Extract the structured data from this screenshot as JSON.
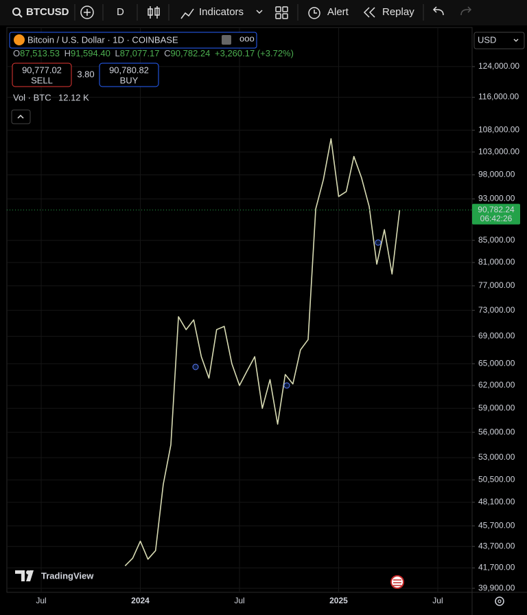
{
  "toolbar": {
    "symbol": "BTCUSD",
    "interval": "D",
    "indicators": "Indicators",
    "alert": "Alert",
    "replay": "Replay"
  },
  "legend": {
    "title": "Bitcoin / U.S. Dollar · 1D · COINBASE",
    "ohlc": [
      {
        "label": "O",
        "value": "87,513.53"
      },
      {
        "label": "H",
        "value": "91,594.40"
      },
      {
        "label": "L",
        "value": "87,077.17"
      },
      {
        "label": "C",
        "value": "90,782.24"
      }
    ],
    "change": "+3,260.17 (+3.72%)",
    "sell": {
      "price": "90,777.02",
      "label": "SELL"
    },
    "spread": "3.80",
    "buy": {
      "price": "90,780.82",
      "label": "BUY"
    },
    "volume": {
      "label": "Vol · BTC",
      "value": "12.12 K"
    }
  },
  "currency": "USD",
  "price_label": {
    "price": "90,782.24",
    "countdown": "06:42:26"
  },
  "watermark": "TradingView",
  "chart_data": {
    "type": "line",
    "color": "#d9dcb4",
    "log_scale": true,
    "grid": true,
    "categories": [
      null,
      null,
      null,
      null,
      "Jul",
      null,
      null,
      null,
      null,
      null,
      null,
      null,
      null,
      null,
      null,
      null,
      null,
      "2024",
      null,
      null,
      null,
      null,
      null,
      null,
      null,
      null,
      null,
      null,
      null,
      null,
      "Jul",
      null,
      null,
      null,
      null,
      null,
      null,
      null,
      null,
      null,
      null,
      null,
      null,
      "2025",
      null,
      null,
      null,
      null,
      null,
      null,
      null,
      null,
      null,
      null,
      null,
      null,
      "Jul",
      null,
      null,
      null,
      null
    ],
    "values": [
      null,
      null,
      null,
      null,
      null,
      null,
      null,
      null,
      null,
      null,
      null,
      null,
      null,
      null,
      null,
      41900,
      42600,
      44200,
      42500,
      43300,
      50000,
      54500,
      72000,
      70000,
      71500,
      66000,
      63000,
      70000,
      70500,
      65000,
      62000,
      64000,
      66000,
      59000,
      62800,
      57000,
      63500,
      62200,
      67000,
      68500,
      91000,
      97000,
      106000,
      93500,
      94500,
      102000,
      97400,
      91500,
      80700,
      87000,
      79000,
      90782.24,
      null,
      null,
      null,
      null,
      null,
      null,
      null,
      null,
      null
    ],
    "ylim": [
      39550,
      135000
    ],
    "yticks": [
      {
        "value": 124000,
        "label": "124,000.00"
      },
      {
        "value": 116000,
        "label": "116,000.00"
      },
      {
        "value": 108000,
        "label": "108,000.00"
      },
      {
        "value": 103000,
        "label": "103,000.00"
      },
      {
        "value": 98000,
        "label": "98,000.00"
      },
      {
        "value": 93000,
        "label": "93,000.00"
      },
      {
        "value": 85000,
        "label": "85,000.00"
      },
      {
        "value": 81000,
        "label": "81,000.00"
      },
      {
        "value": 77000,
        "label": "77,000.00"
      },
      {
        "value": 73000,
        "label": "73,000.00"
      },
      {
        "value": 69000,
        "label": "69,000.00"
      },
      {
        "value": 65000,
        "label": "65,000.00"
      },
      {
        "value": 62000,
        "label": "62,000.00"
      },
      {
        "value": 59000,
        "label": "59,000.00"
      },
      {
        "value": 56000,
        "label": "56,000.00"
      },
      {
        "value": 53000,
        "label": "53,000.00"
      },
      {
        "value": 50500,
        "label": "50,500.00"
      },
      {
        "value": 48100,
        "label": "48,100.00"
      },
      {
        "value": 45700,
        "label": "45,700.00"
      },
      {
        "value": 43700,
        "label": "43,700.00"
      },
      {
        "value": 41700,
        "label": "41,700.00"
      },
      {
        "value": 39900,
        "label": "39,900.00"
      }
    ]
  }
}
